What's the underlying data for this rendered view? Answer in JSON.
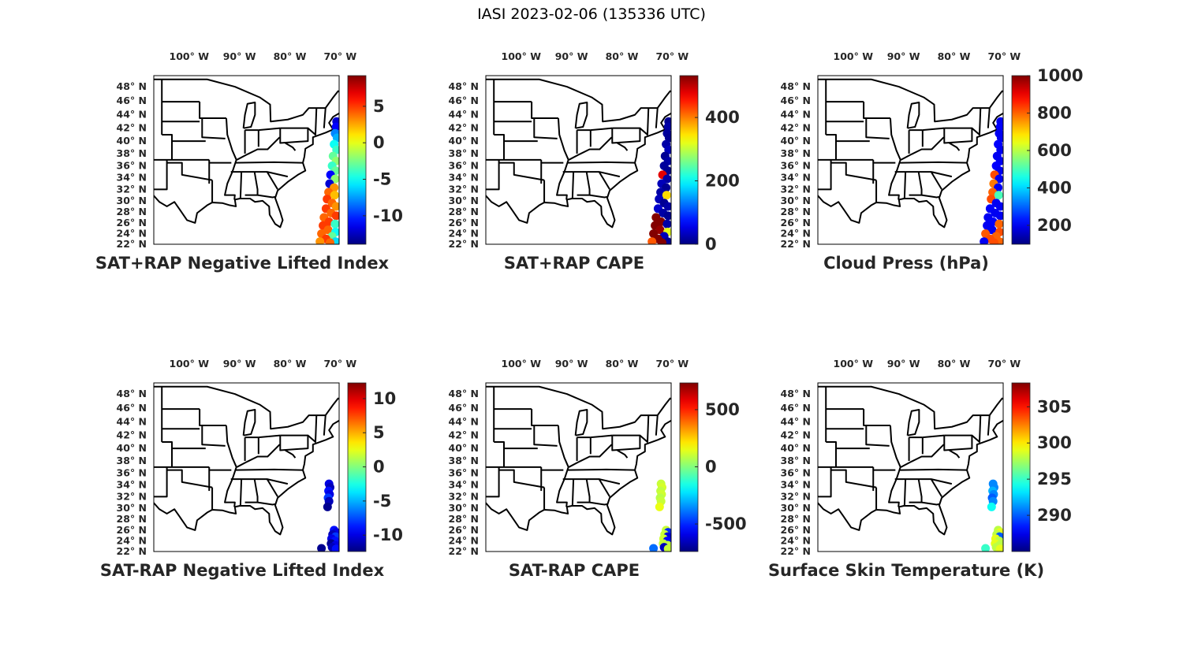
{
  "figure_title": "IASI 2023-02-06 (135336 UTC)",
  "map": {
    "lon_range": [
      -105.6,
      -68.8
    ],
    "lat_range": [
      22,
      49.5
    ],
    "lon_ticks": [
      -100,
      -90,
      -80,
      -70
    ],
    "lon_tick_labels": [
      "100° W",
      "90° W",
      "80° W",
      "70° W"
    ],
    "lat_ticks": [
      48,
      46,
      44,
      42,
      40,
      38,
      36,
      34,
      32,
      30,
      28,
      26,
      24,
      22
    ],
    "lat_tick_labels": [
      "48° N",
      "46° N",
      "44° N",
      "42° N",
      "40° N",
      "38° N",
      "36° N",
      "34° N",
      "32° N",
      "30° N",
      "28° N",
      "26° N",
      "24° N",
      "22° N"
    ]
  },
  "chart_data": [
    {
      "type": "scatter",
      "title": "SAT+RAP Negative Lifted Index",
      "colormap": "jet",
      "clim": [
        -13.9,
        9.2
      ],
      "cbar_ticks": [
        5,
        0,
        -5,
        -10
      ],
      "cbar_tick_labels": [
        "5",
        "0",
        "-5",
        "-10"
      ],
      "points": [
        [
          -69.3,
          43,
          -12
        ],
        [
          -69.4,
          42.2,
          -11
        ],
        [
          -69.6,
          41.2,
          -8
        ],
        [
          -69.2,
          40.5,
          -7
        ],
        [
          -69.8,
          39.5,
          -5
        ],
        [
          -69.3,
          38.6,
          -4
        ],
        [
          -70,
          37.6,
          -3
        ],
        [
          -69.4,
          36.8,
          -2
        ],
        [
          -70.2,
          36,
          -4
        ],
        [
          -69.5,
          35.2,
          -3
        ],
        [
          -70.5,
          34.5,
          -11
        ],
        [
          -69.6,
          33.8,
          -2
        ],
        [
          -70.7,
          33,
          -12
        ],
        [
          -69.8,
          32.3,
          3
        ],
        [
          -70.9,
          31.5,
          4
        ],
        [
          -69.7,
          31,
          2
        ],
        [
          -71.2,
          30.3,
          5
        ],
        [
          -70.2,
          29.6,
          4
        ],
        [
          -69.4,
          29,
          3
        ],
        [
          -71.4,
          28.6,
          5
        ],
        [
          -70.4,
          27.8,
          4
        ],
        [
          -69.4,
          27.3,
          5
        ],
        [
          -71.8,
          27,
          4
        ],
        [
          -70.8,
          26.2,
          5
        ],
        [
          -69.6,
          25.8,
          -4
        ],
        [
          -72,
          25.5,
          5
        ],
        [
          -71,
          24.7,
          4
        ],
        [
          -69.5,
          24.3,
          -5
        ],
        [
          -72.3,
          24,
          4
        ],
        [
          -70.2,
          23.5,
          -3
        ],
        [
          -71.4,
          23,
          5
        ],
        [
          -72.6,
          22.5,
          3
        ],
        [
          -69.5,
          22.5,
          -6
        ],
        [
          -70.6,
          22.3,
          4
        ]
      ]
    },
    {
      "type": "scatter",
      "title": "SAT+RAP CAPE",
      "colormap": "jet",
      "clim": [
        0,
        532
      ],
      "cbar_ticks": [
        400,
        200,
        0
      ],
      "cbar_tick_labels": [
        "400",
        "200",
        "0"
      ],
      "points": [
        [
          -69.3,
          43,
          10
        ],
        [
          -69.4,
          42.2,
          20
        ],
        [
          -69.6,
          41.2,
          15
        ],
        [
          -69.2,
          40.5,
          10
        ],
        [
          -69.8,
          39.5,
          20
        ],
        [
          -69.3,
          38.6,
          30
        ],
        [
          -70,
          37.6,
          10
        ],
        [
          -69.4,
          36.8,
          20
        ],
        [
          -70.2,
          36,
          15
        ],
        [
          -69.5,
          35.2,
          10
        ],
        [
          -70.5,
          34.5,
          480
        ],
        [
          -69.6,
          33.8,
          20
        ],
        [
          -70.7,
          33,
          30
        ],
        [
          -69.8,
          32.3,
          10
        ],
        [
          -70.9,
          31.5,
          20
        ],
        [
          -69.7,
          31,
          350
        ],
        [
          -71.2,
          30.3,
          30
        ],
        [
          -70.2,
          29.6,
          10
        ],
        [
          -69.4,
          29,
          20
        ],
        [
          -71.4,
          28.6,
          40
        ],
        [
          -70.4,
          27.8,
          20
        ],
        [
          -69.4,
          27.3,
          10
        ],
        [
          -71.8,
          27,
          530
        ],
        [
          -70.8,
          26.2,
          530
        ],
        [
          -69.6,
          25.8,
          20
        ],
        [
          -72,
          25.5,
          530
        ],
        [
          -71,
          24.7,
          520
        ],
        [
          -69.5,
          24.3,
          320
        ],
        [
          -72.3,
          24,
          530
        ],
        [
          -70.2,
          23.5,
          30
        ],
        [
          -71.4,
          23,
          530
        ],
        [
          -72.6,
          22.5,
          420
        ],
        [
          -69.5,
          22.5,
          10
        ],
        [
          -70.6,
          22.3,
          530
        ]
      ]
    },
    {
      "type": "scatter",
      "title": "Cloud Press (hPa)",
      "colormap": "jet",
      "clim": [
        99,
        1000
      ],
      "cbar_ticks": [
        1000,
        800,
        600,
        400,
        200
      ],
      "cbar_tick_labels": [
        "1000",
        "800",
        "600",
        "400",
        "200"
      ],
      "points": [
        [
          -69.3,
          43,
          200
        ],
        [
          -69.4,
          42.2,
          210
        ],
        [
          -69.6,
          41.2,
          200
        ],
        [
          -69.2,
          40.5,
          200
        ],
        [
          -69.8,
          39.5,
          210
        ],
        [
          -69.3,
          38.6,
          200
        ],
        [
          -70,
          37.6,
          200
        ],
        [
          -69.4,
          36.8,
          200
        ],
        [
          -70.2,
          36,
          210
        ],
        [
          -69.5,
          35.2,
          200
        ],
        [
          -70.5,
          34.5,
          820
        ],
        [
          -69.6,
          33.8,
          200
        ],
        [
          -70.7,
          33,
          780
        ],
        [
          -69.8,
          32.3,
          200
        ],
        [
          -70.9,
          31.5,
          800
        ],
        [
          -69.7,
          31,
          500
        ],
        [
          -71.2,
          30.3,
          820
        ],
        [
          -70.2,
          29.6,
          200
        ],
        [
          -69.4,
          29,
          200
        ],
        [
          -71.4,
          28.6,
          210
        ],
        [
          -70.4,
          27.8,
          200
        ],
        [
          -69.4,
          27.3,
          200
        ],
        [
          -71.8,
          27,
          200
        ],
        [
          -70.8,
          26.2,
          210
        ],
        [
          -69.6,
          25.8,
          800
        ],
        [
          -72,
          25.5,
          200
        ],
        [
          -71,
          24.7,
          200
        ],
        [
          -69.5,
          24.3,
          820
        ],
        [
          -72.3,
          24,
          810
        ],
        [
          -70.2,
          23.5,
          800
        ],
        [
          -71.4,
          23,
          820
        ],
        [
          -72.6,
          22.5,
          200
        ],
        [
          -69.5,
          22.5,
          800
        ],
        [
          -70.6,
          22.3,
          820
        ]
      ]
    },
    {
      "type": "scatter",
      "title": "SAT-RAP Negative Lifted Index",
      "colormap": "jet",
      "clim": [
        -12.4,
        12.3
      ],
      "cbar_ticks": [
        10,
        5,
        0,
        -5,
        -10
      ],
      "cbar_tick_labels": [
        "10",
        "5",
        "0",
        "-5",
        "-10"
      ],
      "points": [
        [
          -70.8,
          34.2,
          -10
        ],
        [
          -70.6,
          33.6,
          -11
        ],
        [
          -70.9,
          33,
          -9
        ],
        [
          -70.7,
          32.4,
          -10
        ],
        [
          -71,
          31.8,
          -8
        ],
        [
          -70.8,
          31.2,
          -11
        ],
        [
          -71.1,
          30.2,
          -12
        ],
        [
          -69.8,
          26,
          -9
        ],
        [
          -69.4,
          25.6,
          -10
        ],
        [
          -70.1,
          25.2,
          -11
        ],
        [
          -69.5,
          24.8,
          -8
        ],
        [
          -70.3,
          24.4,
          -10
        ],
        [
          -69.6,
          24,
          -9
        ],
        [
          -70.4,
          23.5,
          -12
        ],
        [
          -69.5,
          23.2,
          -10
        ],
        [
          -70.2,
          22.8,
          -11
        ],
        [
          -69.4,
          22.5,
          -9
        ],
        [
          -72.3,
          22.6,
          -12
        ]
      ]
    },
    {
      "type": "scatter",
      "title": "SAT-RAP CAPE",
      "colormap": "jet",
      "clim": [
        -741,
        734
      ],
      "cbar_ticks": [
        500,
        0,
        -500
      ],
      "cbar_tick_labels": [
        "500",
        "0",
        "-500"
      ],
      "points": [
        [
          -70.8,
          34.2,
          100
        ],
        [
          -70.6,
          33.6,
          120
        ],
        [
          -70.9,
          33,
          90
        ],
        [
          -70.7,
          32.4,
          110
        ],
        [
          -71,
          31.8,
          80
        ],
        [
          -70.8,
          31.2,
          100
        ],
        [
          -71.1,
          30.2,
          150
        ],
        [
          -69.8,
          26,
          100
        ],
        [
          -69.4,
          25.6,
          -500
        ],
        [
          -70.1,
          25.2,
          100
        ],
        [
          -69.5,
          24.8,
          -600
        ],
        [
          -70.3,
          24.4,
          110
        ],
        [
          -69.6,
          24,
          -550
        ],
        [
          -70.4,
          23.5,
          100
        ],
        [
          -69.5,
          23.2,
          90
        ],
        [
          -70.2,
          22.8,
          -650
        ],
        [
          -69.4,
          22.5,
          100
        ],
        [
          -72.3,
          22.6,
          -400
        ]
      ]
    },
    {
      "type": "scatter",
      "title": "Surface Skin Temperature (K)",
      "colormap": "jet",
      "clim": [
        285,
        308.3
      ],
      "cbar_ticks": [
        305,
        300,
        295,
        290
      ],
      "cbar_tick_labels": [
        "305",
        "300",
        "295",
        "290"
      ],
      "points": [
        [
          -70.8,
          34.2,
          291
        ],
        [
          -70.6,
          33.6,
          291
        ],
        [
          -70.9,
          33,
          292
        ],
        [
          -70.7,
          32.4,
          291
        ],
        [
          -71,
          31.8,
          290
        ],
        [
          -70.8,
          31.2,
          291
        ],
        [
          -71.1,
          30.2,
          294
        ],
        [
          -69.8,
          26,
          298
        ],
        [
          -69.4,
          25.6,
          299
        ],
        [
          -70.1,
          25.2,
          298
        ],
        [
          -69.5,
          24.8,
          290
        ],
        [
          -70.3,
          24.4,
          299
        ],
        [
          -69.6,
          24,
          298
        ],
        [
          -70.4,
          23.5,
          299
        ],
        [
          -69.5,
          23.2,
          298
        ],
        [
          -70.2,
          22.8,
          298
        ],
        [
          -69.4,
          22.5,
          299
        ],
        [
          -72.3,
          22.6,
          295
        ]
      ]
    }
  ]
}
